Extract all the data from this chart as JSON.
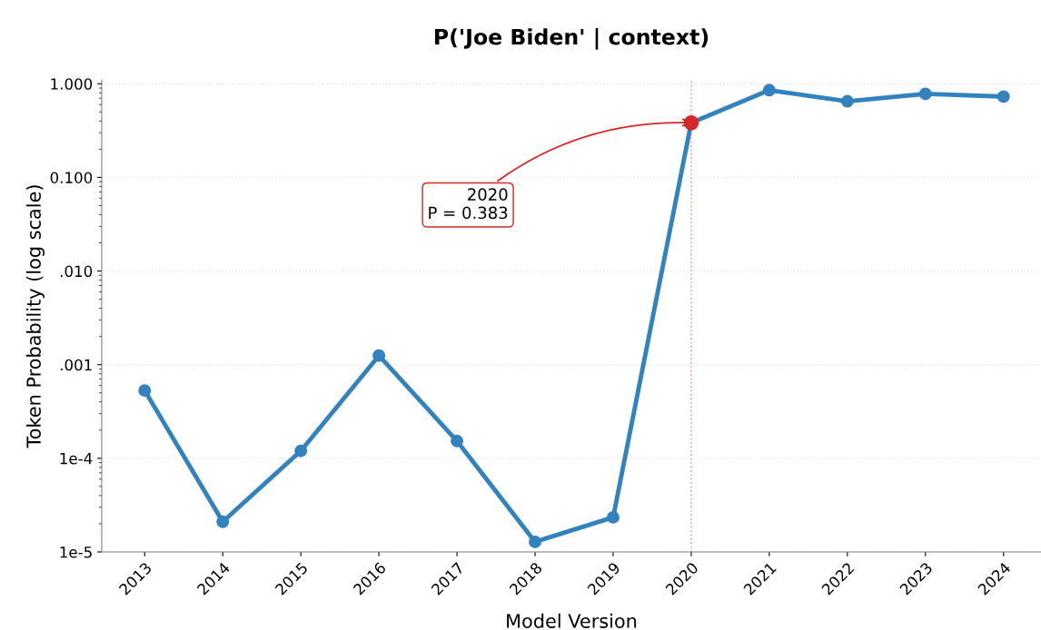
{
  "chart_data": {
    "type": "line",
    "title": "P('Joe Biden' | context)",
    "xlabel": "Model Version",
    "ylabel": "Token Probability (log scale)",
    "categories": [
      "2013",
      "2014",
      "2015",
      "2016",
      "2017",
      "2018",
      "2019",
      "2020",
      "2021",
      "2022",
      "2023",
      "2024"
    ],
    "series": [
      {
        "color": "#3182bd",
        "values": [
          0.00053,
          2.1e-05,
          0.00012,
          0.00125,
          0.000153,
          1.28e-05,
          2.34e-05,
          0.383,
          0.855,
          0.65,
          0.78,
          0.73
        ]
      },
      {
        "type": "scatter",
        "color": "#d62728",
        "values": [
          null,
          null,
          null,
          null,
          null,
          null,
          null,
          0.383,
          null,
          null,
          null,
          null
        ]
      }
    ],
    "log": "y",
    "ylim": [
      1e-05,
      1.1
    ],
    "yticks": [
      {
        "value": 1e-05,
        "label": "1e-5"
      },
      {
        "value": 0.0001,
        "label": "1e-4"
      },
      {
        "value": 0.001,
        "label": ".001"
      },
      {
        "value": 0.01,
        "label": ".010"
      },
      {
        "value": 0.1,
        "label": "0.100"
      },
      {
        "value": 1,
        "label": "1.000"
      }
    ],
    "grid": "y",
    "marker": "circle",
    "line_style": "solid",
    "ref_lines": [
      {
        "axis": "x",
        "value": "2020",
        "color": "#e8a0a0",
        "line_style": "dotted"
      }
    ],
    "annotations": [
      {
        "text": "2020\nP = 0.383",
        "x": "2020",
        "y": 0.383
      }
    ]
  }
}
